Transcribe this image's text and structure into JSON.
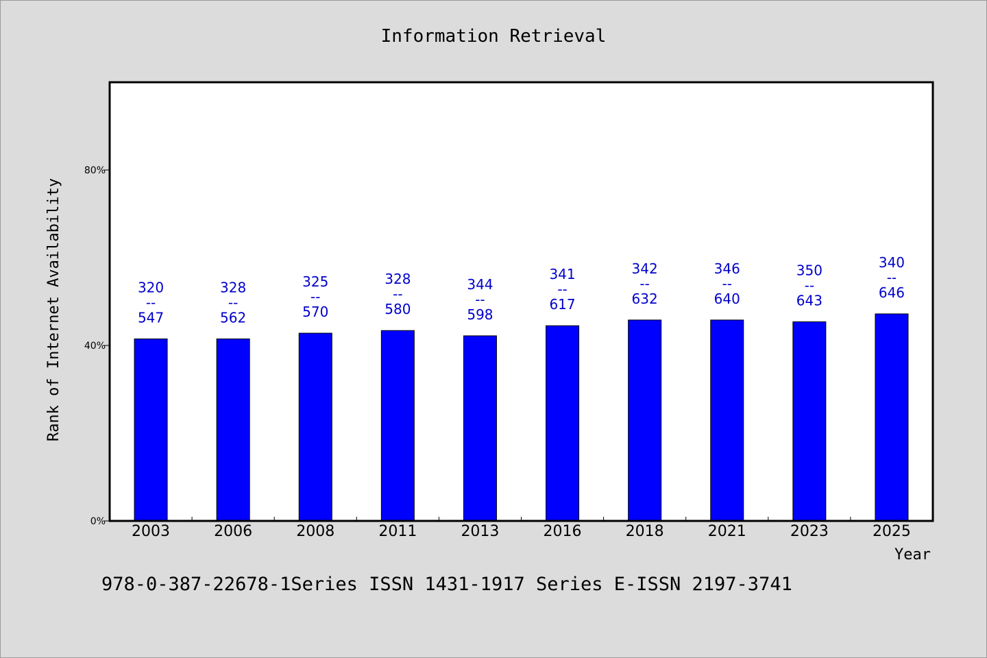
{
  "chart_data": {
    "type": "bar",
    "title": "Information Retrieval",
    "xlabel": "Year",
    "ylabel": "Rank of Internet Availability",
    "categories": [
      "2003",
      "2006",
      "2008",
      "2011",
      "2013",
      "2016",
      "2018",
      "2021",
      "2023",
      "2025"
    ],
    "values": [
      41.5,
      41.5,
      42.8,
      43.4,
      42.2,
      44.5,
      45.8,
      45.8,
      45.4,
      47.2
    ],
    "value_unit": "%",
    "ylim": [
      0,
      100
    ],
    "yticks": [
      {
        "value": 0,
        "label": "0%"
      },
      {
        "value": 40,
        "label": "40%"
      },
      {
        "value": 80,
        "label": "80%"
      }
    ],
    "data_labels": [
      {
        "top": "320",
        "sep": "--",
        "bottom": "547"
      },
      {
        "top": "328",
        "sep": "--",
        "bottom": "562"
      },
      {
        "top": "325",
        "sep": "--",
        "bottom": "570"
      },
      {
        "top": "328",
        "sep": "--",
        "bottom": "580"
      },
      {
        "top": "344",
        "sep": "--",
        "bottom": "598"
      },
      {
        "top": "341",
        "sep": "--",
        "bottom": "617"
      },
      {
        "top": "342",
        "sep": "--",
        "bottom": "632"
      },
      {
        "top": "346",
        "sep": "--",
        "bottom": "640"
      },
      {
        "top": "350",
        "sep": "--",
        "bottom": "643"
      },
      {
        "top": "340",
        "sep": "--",
        "bottom": "646"
      }
    ],
    "colors": {
      "bar": "#0000ff",
      "label": "#0000cc",
      "background": "#dcdcdc",
      "plot": "#ffffff"
    },
    "grid": false,
    "legend": "none"
  },
  "footer": {
    "text": "978-0-387-22678-1Series ISSN 1431-1917 Series E-ISSN 2197-3741"
  }
}
